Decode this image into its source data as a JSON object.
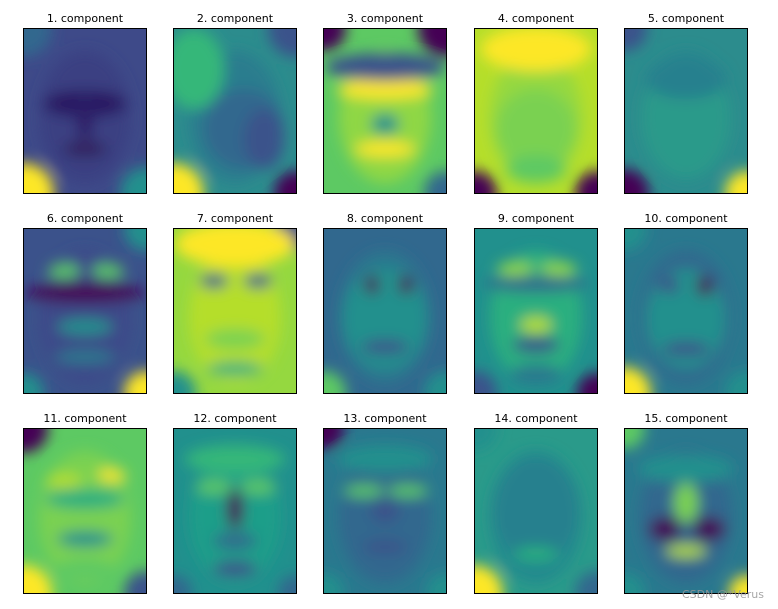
{
  "panels": [
    {
      "title": "1. component",
      "variant": 1
    },
    {
      "title": "2. component",
      "variant": 2
    },
    {
      "title": "3. component",
      "variant": 3
    },
    {
      "title": "4. component",
      "variant": 4
    },
    {
      "title": "5. component",
      "variant": 5
    },
    {
      "title": "6. component",
      "variant": 6
    },
    {
      "title": "7. component",
      "variant": 7
    },
    {
      "title": "8. component",
      "variant": 8
    },
    {
      "title": "9. component",
      "variant": 9
    },
    {
      "title": "10. component",
      "variant": 10
    },
    {
      "title": "11. component",
      "variant": 11
    },
    {
      "title": "12. component",
      "variant": 12
    },
    {
      "title": "13. component",
      "variant": 13
    },
    {
      "title": "14. component",
      "variant": 14
    },
    {
      "title": "15. component",
      "variant": 15
    }
  ],
  "colormap": "viridis",
  "colors": {
    "dark_purple": "#440154",
    "indigo": "#3b528b",
    "teal": "#21908d",
    "green": "#5dc963",
    "yellow": "#fde725"
  },
  "watermark": "CSDN @*Verus"
}
